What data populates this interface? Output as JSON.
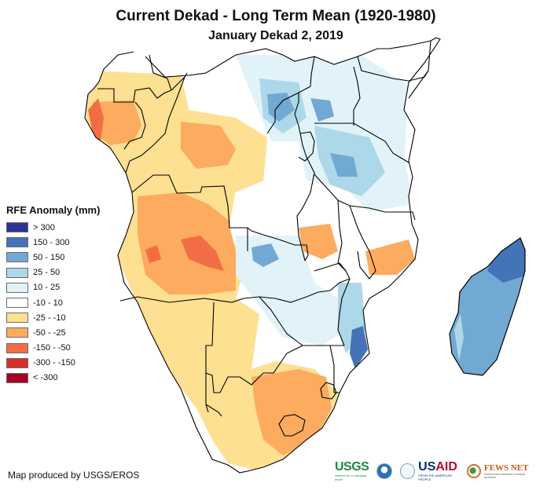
{
  "title": "Current Dekad - Long Term Mean (1920-1980)",
  "subtitle": "January Dekad 2, 2019",
  "legend": {
    "title": "RFE Anomaly (mm)",
    "items": [
      {
        "label": "> 300",
        "color": "#2e3192"
      },
      {
        "label": "150 - 300",
        "color": "#4473b8"
      },
      {
        "label": "50 - 150",
        "color": "#72a9d3"
      },
      {
        "label": "25 - 50",
        "color": "#acd8e9"
      },
      {
        "label": "10 - 25",
        "color": "#e1f3f9"
      },
      {
        "label": "-10 - 10",
        "color": "#ffffff"
      },
      {
        "label": "-25 - -10",
        "color": "#fde092"
      },
      {
        "label": "-50 - -25",
        "color": "#fcab5f"
      },
      {
        "label": "-150 - -50",
        "color": "#f36d44"
      },
      {
        "label": "-300 - -150",
        "color": "#d7302a"
      },
      {
        "label": "< -300",
        "color": "#a50026"
      }
    ]
  },
  "credit": "Map produced by USGS/EROS",
  "logos": {
    "usgs": {
      "word": "USGS",
      "tagline": "science for a changing world"
    },
    "noaa": {
      "name": "NOAA"
    },
    "usaid": {
      "us": "US",
      "aid": "AID",
      "tagline": "FROM THE AMERICAN PEOPLE"
    },
    "fews": {
      "word": "FEWS NET",
      "tagline": "FAMINE EARLY WARNING SYSTEMS NETWORK"
    }
  },
  "map": {
    "region": "Central and Southern Africa",
    "class_colors": {
      "above_300": "#2e3192",
      "a150_300": "#4473b8",
      "a50_150": "#72a9d3",
      "a25_50": "#acd8e9",
      "a10_25": "#e1f3f9",
      "neutral": "#ffffff",
      "b10_25": "#fde092",
      "b25_50": "#fcab5f",
      "b50_150": "#f36d44",
      "b150_300": "#d7302a",
      "below_300": "#a50026"
    }
  }
}
